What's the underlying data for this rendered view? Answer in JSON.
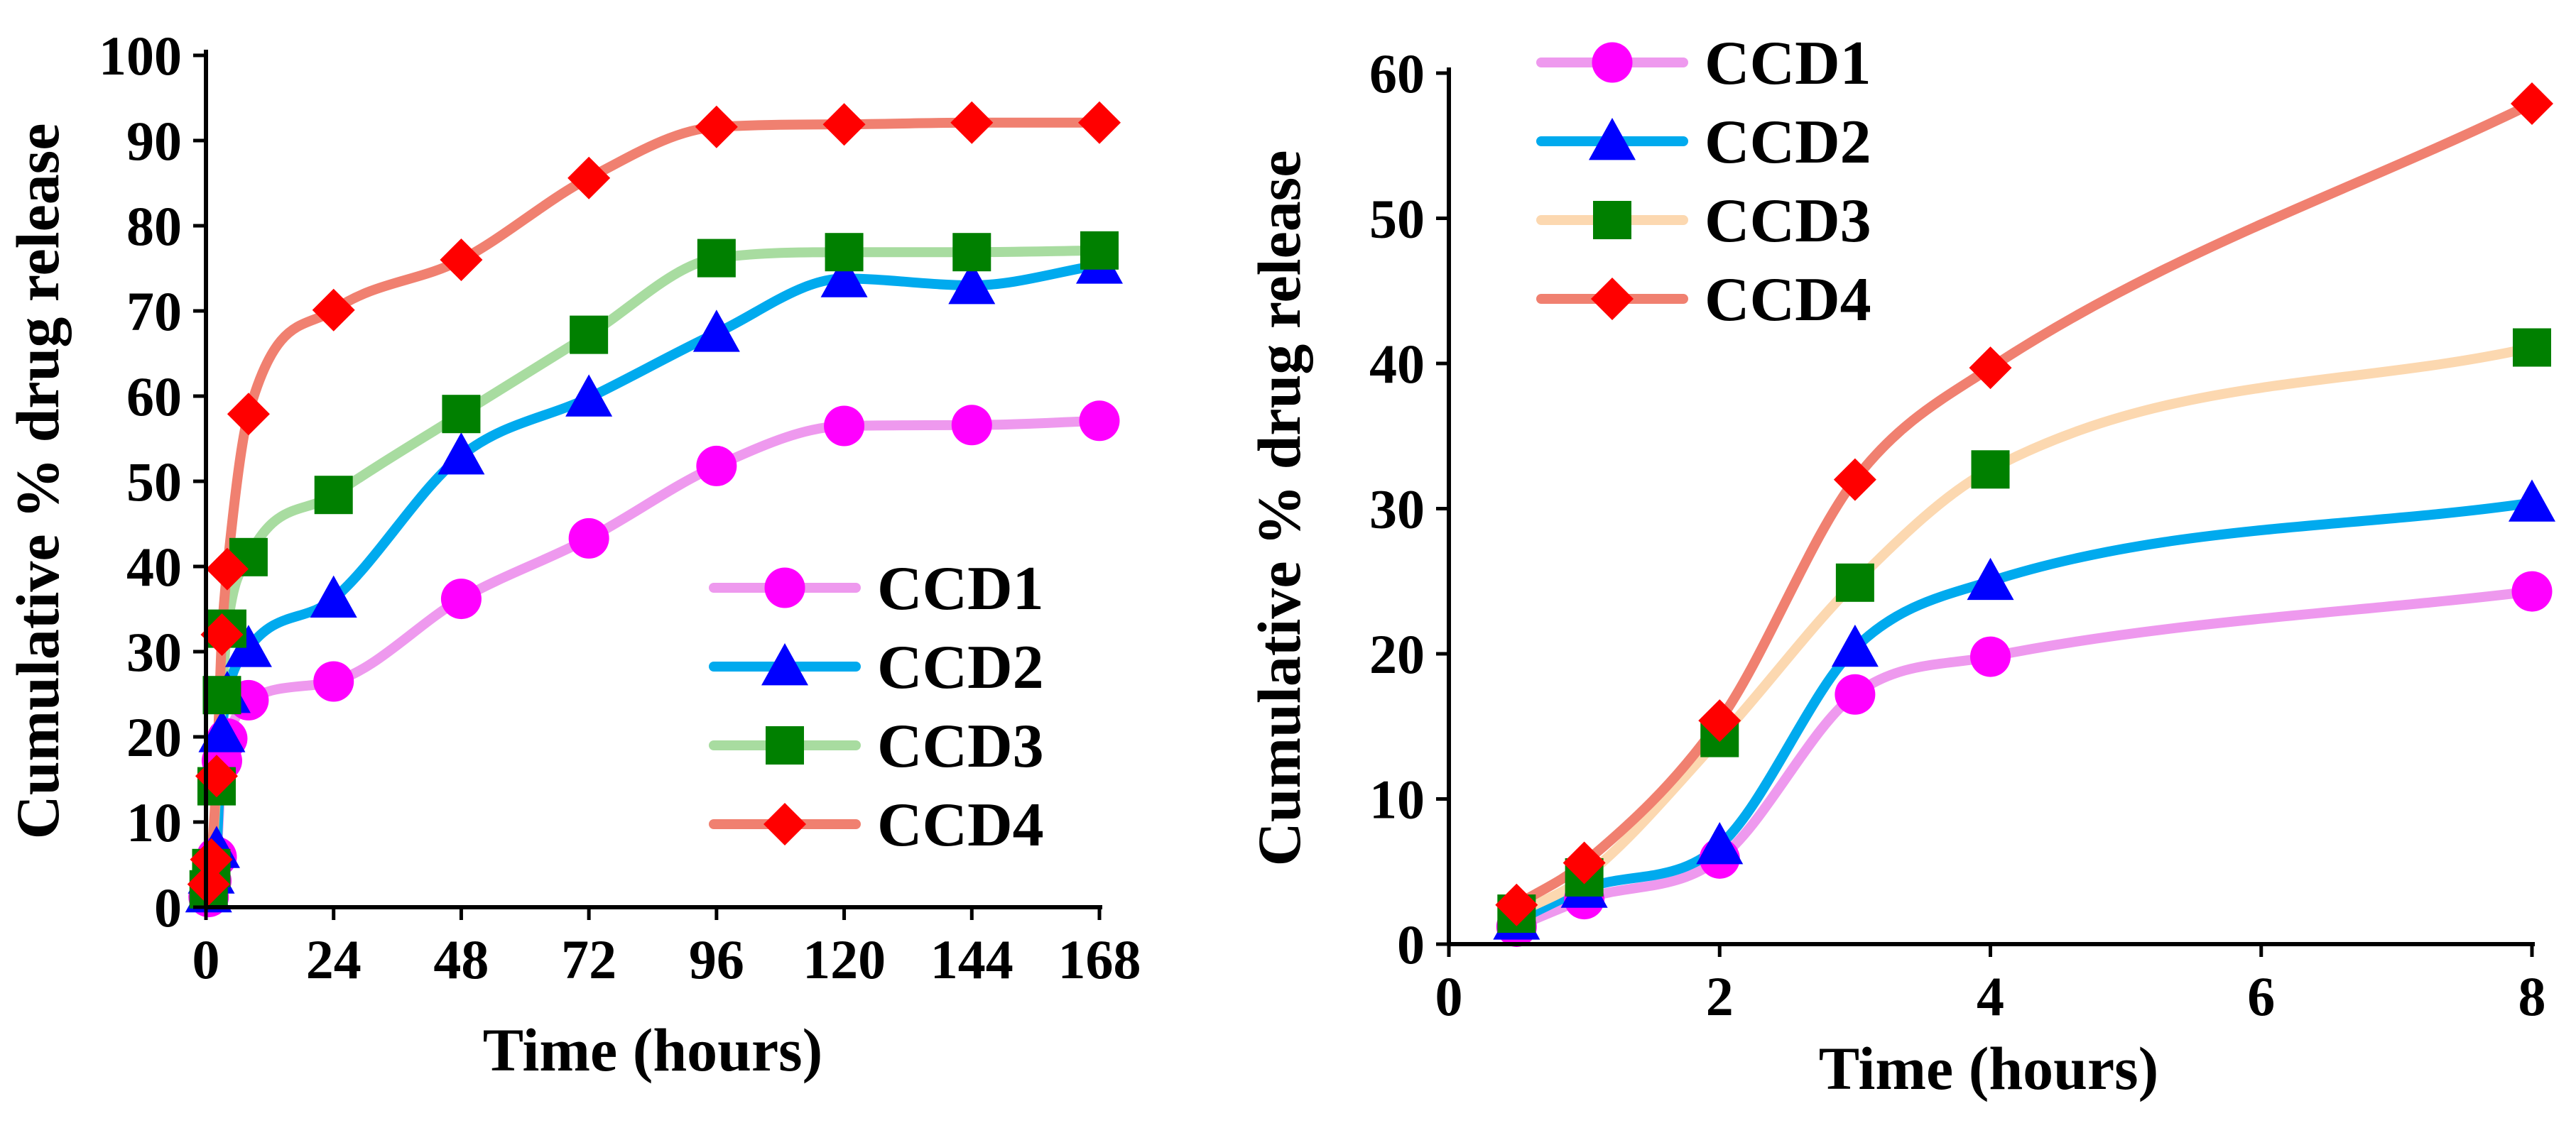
{
  "chart_data": [
    {
      "type": "line",
      "title": "",
      "xlabel": "Time (hours)",
      "ylabel": "Cumulative % drug release",
      "xlim": [
        0,
        168
      ],
      "ylim": [
        0,
        100
      ],
      "xticks": [
        0,
        24,
        48,
        72,
        96,
        120,
        144,
        168
      ],
      "yticks": [
        0,
        10,
        20,
        30,
        40,
        50,
        60,
        70,
        80,
        90,
        100
      ],
      "x": [
        0.5,
        1,
        2,
        3,
        4,
        8,
        24,
        48,
        72,
        96,
        120,
        144,
        168
      ],
      "legend_position": "bottom-right",
      "series": [
        {
          "name": "CCD1",
          "color": "#ee99ee",
          "marker_color": "#ff00ff",
          "marker": "circle",
          "values": [
            1.2,
            3.1,
            5.9,
            17.2,
            19.8,
            24.3,
            26.5,
            36.2,
            43.3,
            51.8,
            56.5,
            56.6,
            57.1
          ]
        },
        {
          "name": "CCD2",
          "color": "#00aaee",
          "marker_color": "#0000ff",
          "marker": "triangle",
          "values": [
            1.6,
            3.8,
            6.8,
            20.4,
            25.0,
            30.4,
            36.2,
            53.0,
            59.8,
            67.4,
            73.8,
            73.0,
            75.4
          ]
        },
        {
          "name": "CCD3",
          "color": "#a8dca0",
          "marker_color": "#008000",
          "marker": "square",
          "values": [
            2.1,
            4.6,
            14.2,
            24.9,
            32.7,
            41.1,
            48.4,
            57.9,
            67.2,
            76.2,
            76.9,
            76.9,
            77.1
          ]
        },
        {
          "name": "CCD4",
          "color": "#f08070",
          "marker_color": "#ff0000",
          "marker": "diamond",
          "values": [
            2.7,
            5.6,
            15.4,
            32.0,
            39.7,
            57.9,
            70.1,
            76.0,
            85.6,
            91.6,
            91.9,
            92.1,
            92.1
          ]
        }
      ]
    },
    {
      "type": "line",
      "title": "",
      "xlabel": "Time (hours)",
      "ylabel": "Cumulative % drug release",
      "xlim": [
        0,
        8
      ],
      "ylim": [
        0,
        60
      ],
      "xticks": [
        0,
        2,
        4,
        6,
        8
      ],
      "yticks": [
        0,
        10,
        20,
        30,
        40,
        50,
        60
      ],
      "x": [
        0.5,
        1,
        2,
        3,
        4,
        8
      ],
      "legend_position": "top-left",
      "series": [
        {
          "name": "CCD1",
          "color": "#ee99ee",
          "marker_color": "#ff00ff",
          "marker": "circle",
          "values": [
            1.2,
            3.1,
            5.9,
            17.2,
            19.8,
            24.3
          ]
        },
        {
          "name": "CCD2",
          "color": "#00aaee",
          "marker_color": "#0000ff",
          "marker": "triangle",
          "values": [
            1.6,
            3.8,
            6.8,
            20.4,
            25.0,
            30.4
          ]
        },
        {
          "name": "CCD3",
          "color": "#fcd8b0",
          "marker_color": "#008000",
          "marker": "square",
          "values": [
            2.1,
            4.6,
            14.2,
            24.9,
            32.7,
            41.1
          ]
        },
        {
          "name": "CCD4",
          "color": "#f08070",
          "marker_color": "#ff0000",
          "marker": "diamond",
          "values": [
            2.7,
            5.6,
            15.4,
            32.0,
            39.7,
            57.9
          ]
        }
      ]
    }
  ]
}
